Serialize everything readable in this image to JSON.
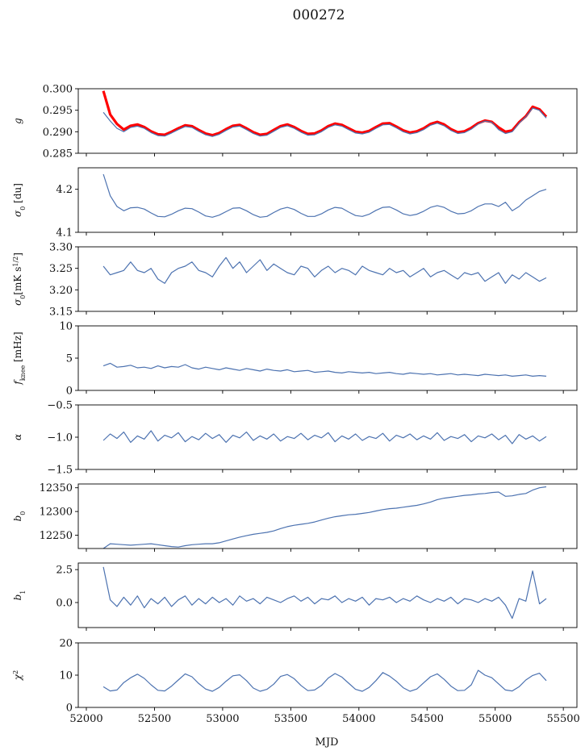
{
  "chart_data": {
    "type": "line",
    "title": "000272",
    "xlabel": "MJD",
    "xlim": [
      51900,
      55700
    ],
    "xticks": [
      52000,
      52500,
      53000,
      53500,
      54000,
      54500,
      55000,
      55500
    ],
    "x_start": 52125,
    "x_step": 50,
    "line_color": "#4c72b0",
    "fit_color": "#ff0000",
    "panels": [
      {
        "ylabel": [
          {
            "t": "g"
          }
        ],
        "ylim": [
          0.285,
          0.3
        ],
        "yticks": [
          0.285,
          0.29,
          0.295,
          0.3
        ],
        "decimals": 3,
        "series": [
          {
            "name": "fit",
            "color": "#ff0000",
            "width": 3.2,
            "values": [
              0.2995,
              0.294,
              0.2918,
              0.2905,
              0.2914,
              0.2917,
              0.2911,
              0.2901,
              0.2894,
              0.2893,
              0.29,
              0.2908,
              0.2915,
              0.2913,
              0.2904,
              0.2896,
              0.2892,
              0.2897,
              0.2906,
              0.2914,
              0.2916,
              0.2908,
              0.2899,
              0.2893,
              0.2895,
              0.2904,
              0.2913,
              0.2917,
              0.2911,
              0.2902,
              0.2895,
              0.2896,
              0.2903,
              0.2913,
              0.2919,
              0.2916,
              0.2908,
              0.29,
              0.2898,
              0.2902,
              0.2911,
              0.2919,
              0.292,
              0.2912,
              0.2903,
              0.2898,
              0.2901,
              0.2908,
              0.2918,
              0.2923,
              0.2917,
              0.2906,
              0.2899,
              0.2901,
              0.2909,
              0.292,
              0.2926,
              0.2923,
              0.291,
              0.29,
              0.2903,
              0.2922,
              0.2936,
              0.2958,
              0.2952,
              0.2935
            ]
          },
          {
            "name": "g",
            "color": "#4c72b0",
            "width": 1.2,
            "values": [
              0.2945,
              0.2925,
              0.2908,
              0.29,
              0.291,
              0.2913,
              0.2908,
              0.2898,
              0.2891,
              0.289,
              0.2897,
              0.2905,
              0.2912,
              0.291,
              0.2901,
              0.2893,
              0.2889,
              0.2894,
              0.2903,
              0.2911,
              0.2913,
              0.2905,
              0.2896,
              0.289,
              0.2892,
              0.2901,
              0.291,
              0.2914,
              0.2908,
              0.2899,
              0.2892,
              0.2893,
              0.29,
              0.291,
              0.2916,
              0.2913,
              0.2905,
              0.2897,
              0.2895,
              0.2899,
              0.2908,
              0.2916,
              0.2917,
              0.2909,
              0.29,
              0.2895,
              0.2898,
              0.2905,
              0.2915,
              0.292,
              0.2914,
              0.2903,
              0.2896,
              0.2898,
              0.2906,
              0.2918,
              0.2925,
              0.2922,
              0.2905,
              0.2896,
              0.29,
              0.292,
              0.2935,
              0.2955,
              0.295,
              0.2932
            ]
          }
        ]
      },
      {
        "ylabel": [
          {
            "t": "σ"
          },
          {
            "t": "0",
            "s": "sub"
          },
          {
            "t": " [du]"
          }
        ],
        "ylim": [
          4.1,
          4.25
        ],
        "yticks": [
          4.1,
          4.2
        ],
        "decimals": 1,
        "series": [
          {
            "name": "sigma0_du",
            "color": "#4c72b0",
            "width": 1.2,
            "values": [
              4.235,
              4.185,
              4.16,
              4.15,
              4.157,
              4.158,
              4.154,
              4.145,
              4.137,
              4.136,
              4.142,
              4.15,
              4.156,
              4.155,
              4.147,
              4.138,
              4.135,
              4.14,
              4.148,
              4.156,
              4.157,
              4.15,
              4.141,
              4.135,
              4.137,
              4.146,
              4.154,
              4.158,
              4.153,
              4.144,
              4.137,
              4.137,
              4.143,
              4.152,
              4.158,
              4.156,
              4.147,
              4.139,
              4.137,
              4.142,
              4.151,
              4.158,
              4.159,
              4.152,
              4.143,
              4.139,
              4.142,
              4.149,
              4.158,
              4.162,
              4.158,
              4.149,
              4.143,
              4.144,
              4.15,
              4.16,
              4.166,
              4.166,
              4.16,
              4.17,
              4.15,
              4.16,
              4.175,
              4.185,
              4.195,
              4.2
            ]
          }
        ]
      },
      {
        "ylabel": [
          {
            "t": "σ"
          },
          {
            "t": "0",
            "s": "sub"
          },
          {
            "t": "[mK s"
          },
          {
            "t": "1/2",
            "s": "sup"
          },
          {
            "t": "]"
          }
        ],
        "ylim": [
          3.15,
          3.3
        ],
        "yticks": [
          3.15,
          3.2,
          3.25,
          3.3
        ],
        "decimals": 2,
        "series": [
          {
            "name": "sigma0_mK",
            "color": "#4c72b0",
            "width": 1.2,
            "values": [
              3.255,
              3.235,
              3.24,
              3.245,
              3.265,
              3.245,
              3.24,
              3.25,
              3.225,
              3.215,
              3.24,
              3.25,
              3.255,
              3.265,
              3.245,
              3.24,
              3.23,
              3.255,
              3.275,
              3.25,
              3.265,
              3.24,
              3.255,
              3.27,
              3.245,
              3.26,
              3.25,
              3.24,
              3.235,
              3.255,
              3.25,
              3.23,
              3.245,
              3.255,
              3.24,
              3.25,
              3.245,
              3.235,
              3.255,
              3.245,
              3.24,
              3.235,
              3.25,
              3.24,
              3.245,
              3.23,
              3.24,
              3.25,
              3.23,
              3.24,
              3.245,
              3.235,
              3.225,
              3.24,
              3.235,
              3.24,
              3.22,
              3.23,
              3.24,
              3.215,
              3.235,
              3.225,
              3.24,
              3.23,
              3.22,
              3.228
            ]
          }
        ]
      },
      {
        "ylabel": [
          {
            "t": "f"
          },
          {
            "t": "knee",
            "s": "sub"
          },
          {
            "t": " [mHz]"
          }
        ],
        "ylim": [
          0,
          10
        ],
        "yticks": [
          0,
          5,
          10
        ],
        "decimals": 0,
        "series": [
          {
            "name": "fknee",
            "color": "#4c72b0",
            "width": 1.2,
            "values": [
              3.8,
              4.2,
              3.6,
              3.7,
              3.9,
              3.5,
              3.6,
              3.4,
              3.8,
              3.5,
              3.7,
              3.6,
              4.0,
              3.5,
              3.3,
              3.6,
              3.4,
              3.2,
              3.5,
              3.3,
              3.1,
              3.4,
              3.2,
              3.0,
              3.3,
              3.1,
              3.0,
              3.2,
              2.9,
              3.0,
              3.1,
              2.8,
              2.9,
              3.0,
              2.8,
              2.7,
              2.9,
              2.8,
              2.7,
              2.8,
              2.6,
              2.7,
              2.8,
              2.6,
              2.5,
              2.7,
              2.6,
              2.5,
              2.6,
              2.4,
              2.5,
              2.6,
              2.4,
              2.5,
              2.4,
              2.3,
              2.5,
              2.4,
              2.3,
              2.4,
              2.2,
              2.3,
              2.4,
              2.2,
              2.3,
              2.2
            ]
          }
        ]
      },
      {
        "ylabel": [
          {
            "t": "α"
          }
        ],
        "ylim": [
          -1.5,
          -0.5
        ],
        "yticks": [
          -1.5,
          -1.0,
          -0.5
        ],
        "decimals": 1,
        "series": [
          {
            "name": "alpha",
            "color": "#4c72b0",
            "width": 1.2,
            "values": [
              -1.05,
              -0.95,
              -1.02,
              -0.92,
              -1.08,
              -0.98,
              -1.03,
              -0.9,
              -1.06,
              -0.97,
              -1.01,
              -0.93,
              -1.07,
              -0.99,
              -1.04,
              -0.94,
              -1.02,
              -0.96,
              -1.08,
              -0.97,
              -1.01,
              -0.92,
              -1.05,
              -0.98,
              -1.03,
              -0.95,
              -1.06,
              -0.99,
              -1.02,
              -0.94,
              -1.04,
              -0.97,
              -1.01,
              -0.93,
              -1.07,
              -0.98,
              -1.03,
              -0.95,
              -1.05,
              -0.99,
              -1.02,
              -0.94,
              -1.06,
              -0.97,
              -1.01,
              -0.95,
              -1.04,
              -0.98,
              -1.03,
              -0.93,
              -1.05,
              -0.99,
              -1.02,
              -0.96,
              -1.07,
              -0.98,
              -1.01,
              -0.95,
              -1.04,
              -0.97,
              -1.1,
              -0.96,
              -1.03,
              -0.98,
              -1.06,
              -0.99
            ]
          }
        ]
      },
      {
        "ylabel": [
          {
            "t": "b"
          },
          {
            "t": "0",
            "s": "sub"
          }
        ],
        "ylim": [
          12222,
          12358
        ],
        "yticks": [
          12250,
          12300,
          12350
        ],
        "decimals": 0,
        "series": [
          {
            "name": "b0",
            "color": "#4c72b0",
            "width": 1.2,
            "values": [
              12222,
              12232,
              12231,
              12230,
              12229,
              12230,
              12231,
              12232,
              12230,
              12228,
              12226,
              12225,
              12228,
              12230,
              12231,
              12232,
              12232,
              12234,
              12238,
              12242,
              12246,
              12249,
              12252,
              12254,
              12256,
              12259,
              12264,
              12268,
              12271,
              12273,
              12275,
              12278,
              12282,
              12286,
              12289,
              12291,
              12293,
              12294,
              12296,
              12298,
              12301,
              12304,
              12306,
              12307,
              12309,
              12311,
              12313,
              12316,
              12320,
              12325,
              12328,
              12330,
              12332,
              12334,
              12335,
              12337,
              12338,
              12340,
              12341,
              12332,
              12333,
              12336,
              12338,
              12345,
              12350,
              12352
            ]
          }
        ]
      },
      {
        "ylabel": [
          {
            "t": "b"
          },
          {
            "t": "1",
            "s": "sub"
          }
        ],
        "ylim": [
          -1.9,
          3.0
        ],
        "yticks": [
          0.0,
          2.5
        ],
        "decimals": 1,
        "series": [
          {
            "name": "b1",
            "color": "#4c72b0",
            "width": 1.2,
            "values": [
              2.7,
              0.2,
              -0.3,
              0.4,
              -0.2,
              0.5,
              -0.4,
              0.3,
              -0.1,
              0.4,
              -0.3,
              0.2,
              0.5,
              -0.2,
              0.3,
              -0.1,
              0.4,
              0.0,
              0.3,
              -0.2,
              0.5,
              0.1,
              0.3,
              -0.1,
              0.4,
              0.2,
              0.0,
              0.3,
              0.5,
              0.1,
              0.4,
              -0.1,
              0.3,
              0.2,
              0.5,
              0.0,
              0.3,
              0.1,
              0.4,
              -0.2,
              0.3,
              0.2,
              0.4,
              0.0,
              0.3,
              0.1,
              0.5,
              0.2,
              0.0,
              0.3,
              0.1,
              0.4,
              -0.1,
              0.3,
              0.2,
              0.0,
              0.3,
              0.1,
              0.4,
              -0.2,
              -1.2,
              0.3,
              0.1,
              2.4,
              -0.1,
              0.3
            ]
          }
        ]
      },
      {
        "ylabel": [
          {
            "t": "χ"
          },
          {
            "t": "2",
            "s": "sup"
          }
        ],
        "ylim": [
          0,
          20
        ],
        "yticks": [
          0,
          10,
          20
        ],
        "decimals": 0,
        "series": [
          {
            "name": "chi2",
            "color": "#4c72b0",
            "width": 1.2,
            "values": [
              6.4,
              5.1,
              5.4,
              7.7,
              9.2,
              10.3,
              9.0,
              7.0,
              5.3,
              5.1,
              6.6,
              8.5,
              10.4,
              9.5,
              7.4,
              5.7,
              5.0,
              6.2,
              8.1,
              9.8,
              10.1,
              8.3,
              6.0,
              5.0,
              5.6,
              7.2,
              9.6,
              10.2,
              8.9,
              6.8,
              5.2,
              5.4,
              6.8,
              9.1,
              10.5,
              9.4,
              7.5,
              5.6,
              5.0,
              6.2,
              8.3,
              10.8,
              9.7,
              8.1,
              6.1,
              5.0,
              5.7,
              7.6,
              9.5,
              10.4,
              8.7,
              6.6,
              5.2,
              5.3,
              7.0,
              11.5,
              10.0,
              9.2,
              7.3,
              5.4,
              5.1,
              6.4,
              8.5,
              9.9,
              10.6,
              8.3
            ]
          }
        ]
      }
    ]
  }
}
